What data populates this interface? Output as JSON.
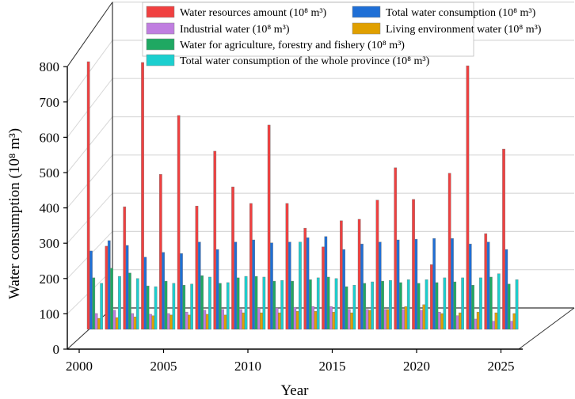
{
  "chart_data": {
    "type": "bar",
    "title": "",
    "xlabel": "Year",
    "ylabel": "Water consumption (10⁸ m³)",
    "ylim": [
      0,
      800
    ],
    "xlim": [
      2000,
      2025
    ],
    "yticks": [
      "0",
      "100",
      "200",
      "300",
      "400",
      "500",
      "600",
      "700",
      "800"
    ],
    "xticks": [
      "2000",
      "2005",
      "2010",
      "2015",
      "2020",
      "2025"
    ],
    "grid": true,
    "legend_position": "top",
    "categories": [
      2001,
      2002,
      2003,
      2004,
      2005,
      2006,
      2007,
      2008,
      2009,
      2010,
      2011,
      2012,
      2013,
      2014,
      2015,
      2016,
      2017,
      2018,
      2019,
      2020,
      2021,
      2022,
      2023,
      2024
    ],
    "series": [
      {
        "name": "Water resources amount (10⁸ m³)",
        "color": "#f04040",
        "values": [
          727,
          226,
          333,
          725,
          421,
          581,
          335,
          484,
          387,
          342,
          555,
          342,
          275,
          224,
          295,
          299,
          351,
          439,
          353,
          176,
          424,
          716,
          260,
          490
        ]
      },
      {
        "name": "Total water consumption (10⁸ m³)",
        "color": "#1f6fd6",
        "values": [
          213,
          241,
          228,
          196,
          209,
          206,
          237,
          217,
          237,
          243,
          235,
          237,
          249,
          252,
          217,
          232,
          237,
          243,
          245,
          247,
          247,
          232,
          237,
          217
        ]
      },
      {
        "name": "Water for agriculture, forestry and fishery (10⁸ m³)",
        "color": "#1fa862",
        "values": [
          140,
          166,
          153,
          118,
          131,
          120,
          146,
          125,
          140,
          144,
          131,
          131,
          135,
          142,
          116,
          125,
          131,
          127,
          125,
          127,
          129,
          120,
          142,
          123
        ]
      },
      {
        "name": "Industrial water (10⁸ m³)",
        "color": "#c07ee0",
        "values": [
          43,
          52,
          43,
          41,
          43,
          47,
          52,
          54,
          54,
          58,
          58,
          60,
          62,
          62,
          54,
          54,
          54,
          54,
          52,
          47,
          37,
          28,
          22,
          22
        ]
      },
      {
        "name": "Living environment water (10⁸ m³)",
        "color": "#e0a000",
        "values": [
          30,
          32,
          34,
          37,
          39,
          39,
          41,
          39,
          45,
          45,
          45,
          49,
          49,
          47,
          45,
          52,
          54,
          62,
          67,
          43,
          45,
          47,
          45,
          43
        ]
      },
      {
        "name": "Total water consumption of the whole province (10⁸ m³)",
        "color": "#1ccfcf",
        "values": [
          125,
          144,
          138,
          116,
          125,
          123,
          142,
          127,
          144,
          142,
          133,
          237,
          140,
          138,
          120,
          129,
          133,
          135,
          135,
          140,
          140,
          140,
          151,
          135
        ]
      }
    ],
    "legend_order": [
      0,
      1,
      3,
      4,
      2,
      5
    ]
  }
}
